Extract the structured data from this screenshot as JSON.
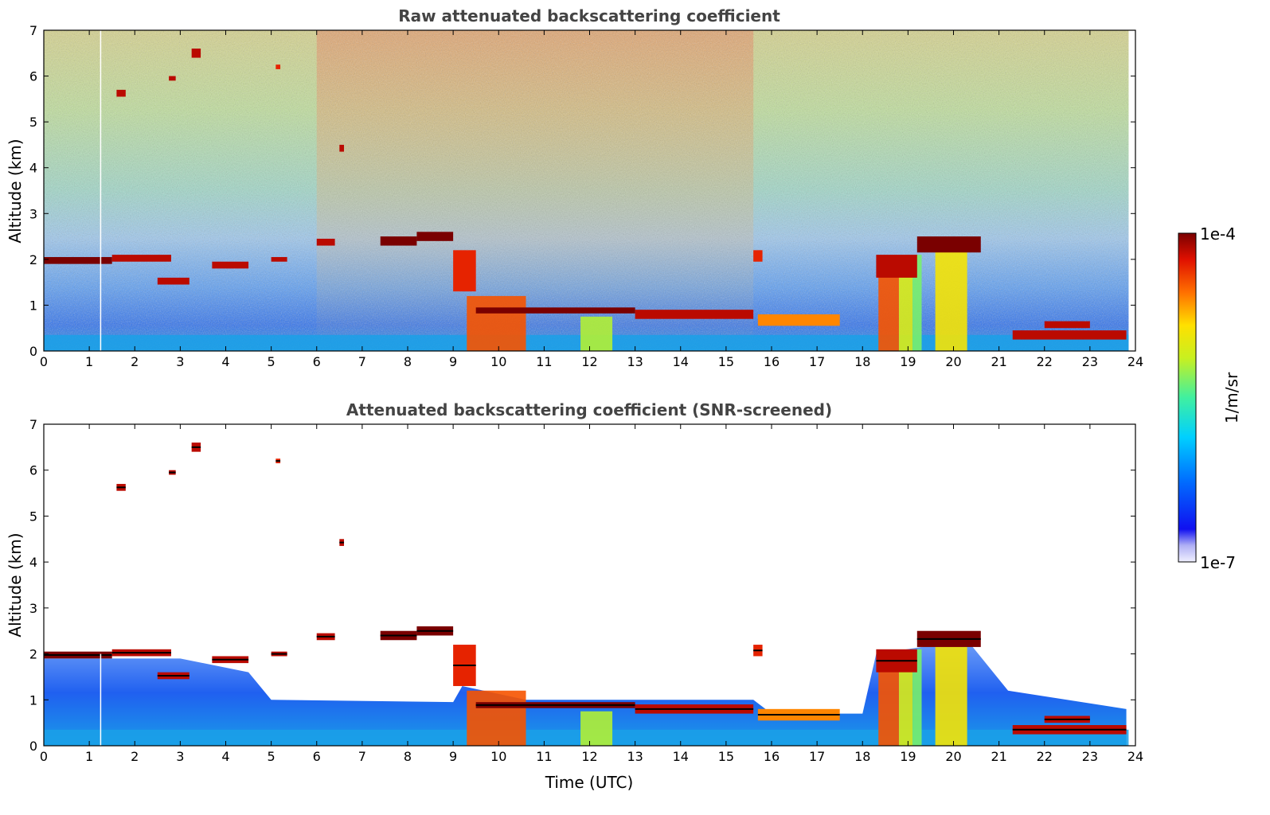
{
  "chart_data": [
    {
      "type": "heatmap",
      "title": "Raw attenuated backscattering coefficient",
      "xlabel": "",
      "ylabel": "Altitude (km)",
      "xlim": [
        0,
        24
      ],
      "ylim": [
        0,
        7
      ],
      "x_ticks": [
        "0",
        "1",
        "2",
        "3",
        "4",
        "5",
        "6",
        "7",
        "8",
        "9",
        "10",
        "11",
        "12",
        "13",
        "14",
        "15",
        "16",
        "17",
        "18",
        "19",
        "20",
        "21",
        "22",
        "23",
        "24"
      ],
      "y_ticks": [
        "0",
        "1",
        "2",
        "3",
        "4",
        "5",
        "6",
        "7"
      ],
      "data_end_time": 23.85,
      "cloud_layers": [
        {
          "t": [
            0,
            1.5
          ],
          "z": [
            1.9,
            2.05
          ],
          "level": 1.0
        },
        {
          "t": [
            1.5,
            2.8
          ],
          "z": [
            1.95,
            2.1
          ],
          "level": 0.95
        },
        {
          "t": [
            2.5,
            3.2
          ],
          "z": [
            1.45,
            1.6
          ],
          "level": 0.95
        },
        {
          "t": [
            1.6,
            1.8
          ],
          "z": [
            5.55,
            5.7
          ],
          "level": 0.95
        },
        {
          "t": [
            2.75,
            2.9
          ],
          "z": [
            5.9,
            6.0
          ],
          "level": 0.95
        },
        {
          "t": [
            3.25,
            3.45
          ],
          "z": [
            6.4,
            6.6
          ],
          "level": 0.95
        },
        {
          "t": [
            5.1,
            5.2
          ],
          "z": [
            6.15,
            6.25
          ],
          "level": 0.9
        },
        {
          "t": [
            3.7,
            4.5
          ],
          "z": [
            1.8,
            1.95
          ],
          "level": 0.95
        },
        {
          "t": [
            5.0,
            5.35
          ],
          "z": [
            1.95,
            2.05
          ],
          "level": 0.95
        },
        {
          "t": [
            6.0,
            6.4
          ],
          "z": [
            2.3,
            2.45
          ],
          "level": 0.95
        },
        {
          "t": [
            6.5,
            6.6
          ],
          "z": [
            4.35,
            4.5
          ],
          "level": 0.95
        },
        {
          "t": [
            7.4,
            8.2
          ],
          "z": [
            2.3,
            2.5
          ],
          "level": 1.0
        },
        {
          "t": [
            8.2,
            9.0
          ],
          "z": [
            2.4,
            2.6
          ],
          "level": 1.0
        },
        {
          "t": [
            9.0,
            9.5
          ],
          "z": [
            1.3,
            2.2
          ],
          "level": 0.9
        },
        {
          "t": [
            9.5,
            13.0
          ],
          "z": [
            0.82,
            0.95
          ],
          "level": 1.0
        },
        {
          "t": [
            13.0,
            15.6
          ],
          "z": [
            0.7,
            0.9
          ],
          "level": 0.95
        },
        {
          "t": [
            15.6,
            15.8
          ],
          "z": [
            1.95,
            2.2
          ],
          "level": 0.9
        },
        {
          "t": [
            15.7,
            17.5
          ],
          "z": [
            0.55,
            0.8
          ],
          "level": 0.8
        },
        {
          "t": [
            18.3,
            19.2
          ],
          "z": [
            1.6,
            2.1
          ],
          "level": 0.95
        },
        {
          "t": [
            19.2,
            20.6
          ],
          "z": [
            2.15,
            2.5
          ],
          "level": 1.0
        },
        {
          "t": [
            21.3,
            23.8
          ],
          "z": [
            0.25,
            0.45
          ],
          "level": 0.95
        },
        {
          "t": [
            22.0,
            23.0
          ],
          "z": [
            0.5,
            0.65
          ],
          "level": 0.95
        }
      ],
      "precipitation_columns": [
        {
          "t": [
            9.3,
            10.6
          ],
          "z": [
            0,
            1.2
          ],
          "level": 0.85
        },
        {
          "t": [
            11.8,
            12.5
          ],
          "z": [
            0,
            0.75
          ],
          "level": 0.6
        },
        {
          "t": [
            18.35,
            18.8
          ],
          "z": [
            0,
            1.9
          ],
          "level": 0.85
        },
        {
          "t": [
            18.8,
            19.1
          ],
          "z": [
            0,
            1.8
          ],
          "level": 0.65
        },
        {
          "t": [
            19.1,
            19.3
          ],
          "z": [
            0,
            2.1
          ],
          "level": 0.55
        },
        {
          "t": [
            19.6,
            20.3
          ],
          "z": [
            0,
            2.2
          ],
          "level": 0.7
        }
      ],
      "missing_profile_time": 1.25
    },
    {
      "type": "heatmap",
      "title": "Attenuated backscattering coefficient (SNR-screened)",
      "xlabel": "Time (UTC)",
      "ylabel": "Altitude (km)",
      "xlim": [
        0,
        24
      ],
      "ylim": [
        0,
        7
      ],
      "x_ticks": [
        "0",
        "1",
        "2",
        "3",
        "4",
        "5",
        "6",
        "7",
        "8",
        "9",
        "10",
        "11",
        "12",
        "13",
        "14",
        "15",
        "16",
        "17",
        "18",
        "19",
        "20",
        "21",
        "22",
        "23",
        "24"
      ],
      "y_ticks": [
        "0",
        "1",
        "2",
        "3",
        "4",
        "5",
        "6",
        "7"
      ],
      "data_end_time": 23.85,
      "aerosol_layer_top_km": [
        [
          0,
          1.9
        ],
        [
          3,
          1.9
        ],
        [
          4.5,
          1.6
        ],
        [
          5.0,
          1.0
        ],
        [
          9.0,
          0.95
        ],
        [
          9.2,
          1.3
        ],
        [
          10.6,
          1.0
        ],
        [
          15.6,
          1.0
        ],
        [
          16.0,
          0.7
        ],
        [
          18.0,
          0.7
        ],
        [
          18.3,
          2.0
        ],
        [
          20.3,
          2.3
        ],
        [
          21.2,
          1.2
        ],
        [
          23.8,
          0.8
        ]
      ],
      "missing_profile_time": 1.25
    }
  ],
  "colorbar": {
    "label": "1/m/sr",
    "max_label": "1e-4",
    "min_label": "1e-7",
    "colormap": "jet"
  }
}
